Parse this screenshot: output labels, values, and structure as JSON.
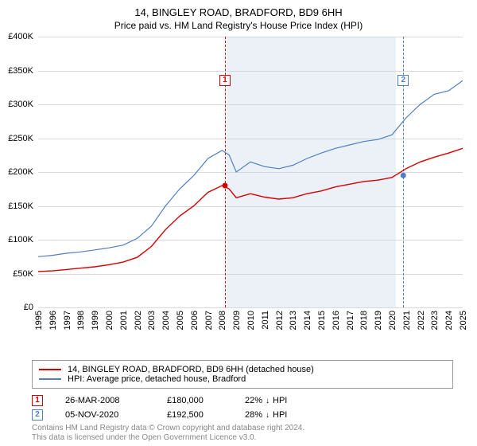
{
  "title": "14, BINGLEY ROAD, BRADFORD, BD9 6HH",
  "subtitle": "Price paid vs. HM Land Registry's House Price Index (HPI)",
  "chart": {
    "type": "line",
    "ylim": [
      0,
      400000
    ],
    "ytick_step": 50000,
    "y_labels": [
      "£0",
      "£50K",
      "£100K",
      "£150K",
      "£200K",
      "£250K",
      "£300K",
      "£350K",
      "£400K"
    ],
    "xlim": [
      1995,
      2025
    ],
    "x_labels": [
      "1995",
      "1996",
      "1997",
      "1998",
      "1999",
      "2000",
      "2001",
      "2002",
      "2003",
      "2004",
      "2005",
      "2006",
      "2007",
      "2008",
      "2009",
      "2010",
      "2011",
      "2012",
      "2013",
      "2014",
      "2015",
      "2016",
      "2017",
      "2018",
      "2019",
      "2020",
      "2021",
      "2022",
      "2023",
      "2024",
      "2025"
    ],
    "background_color": "#ffffff",
    "grid_color": "#d9d9d9",
    "shade_color": "rgba(200,215,235,0.35)",
    "shade_x": [
      2008.3,
      2020.3
    ],
    "series": [
      {
        "name": "14, BINGLEY ROAD, BRADFORD, BD9 6HH (detached house)",
        "color": "#d40000",
        "line_width": 1.4,
        "data": [
          [
            1995,
            53000
          ],
          [
            1996,
            54000
          ],
          [
            1997,
            56000
          ],
          [
            1998,
            58000
          ],
          [
            1999,
            60000
          ],
          [
            2000,
            63000
          ],
          [
            2001,
            67000
          ],
          [
            2002,
            74000
          ],
          [
            2003,
            90000
          ],
          [
            2004,
            115000
          ],
          [
            2005,
            135000
          ],
          [
            2006,
            150000
          ],
          [
            2007,
            170000
          ],
          [
            2008,
            180000
          ],
          [
            2008.5,
            175000
          ],
          [
            2009,
            162000
          ],
          [
            2010,
            168000
          ],
          [
            2011,
            163000
          ],
          [
            2012,
            160000
          ],
          [
            2013,
            162000
          ],
          [
            2014,
            168000
          ],
          [
            2015,
            172000
          ],
          [
            2016,
            178000
          ],
          [
            2017,
            182000
          ],
          [
            2018,
            186000
          ],
          [
            2019,
            188000
          ],
          [
            2020,
            192000
          ],
          [
            2021,
            205000
          ],
          [
            2022,
            215000
          ],
          [
            2023,
            222000
          ],
          [
            2024,
            228000
          ],
          [
            2025,
            235000
          ]
        ]
      },
      {
        "name": "HPI: Average price, detached house, Bradford",
        "color": "#4f7ec2",
        "line_width": 1.2,
        "data": [
          [
            1995,
            75000
          ],
          [
            1996,
            77000
          ],
          [
            1997,
            80000
          ],
          [
            1998,
            82000
          ],
          [
            1999,
            85000
          ],
          [
            2000,
            88000
          ],
          [
            2001,
            92000
          ],
          [
            2002,
            102000
          ],
          [
            2003,
            120000
          ],
          [
            2004,
            150000
          ],
          [
            2005,
            175000
          ],
          [
            2006,
            195000
          ],
          [
            2007,
            220000
          ],
          [
            2008,
            232000
          ],
          [
            2008.5,
            225000
          ],
          [
            2009,
            200000
          ],
          [
            2010,
            215000
          ],
          [
            2011,
            208000
          ],
          [
            2012,
            205000
          ],
          [
            2013,
            210000
          ],
          [
            2014,
            220000
          ],
          [
            2015,
            228000
          ],
          [
            2016,
            235000
          ],
          [
            2017,
            240000
          ],
          [
            2018,
            245000
          ],
          [
            2019,
            248000
          ],
          [
            2020,
            255000
          ],
          [
            2021,
            280000
          ],
          [
            2022,
            300000
          ],
          [
            2023,
            315000
          ],
          [
            2024,
            320000
          ],
          [
            2025,
            335000
          ]
        ]
      }
    ],
    "markers": [
      {
        "n": "1",
        "x": 2008.2,
        "color": "#d40000",
        "point_y": 180000
      },
      {
        "n": "2",
        "x": 2020.8,
        "color": "#4f7ec2",
        "point_y": 195000
      }
    ]
  },
  "legend": {
    "items": [
      {
        "color": "#d40000",
        "label": "14, BINGLEY ROAD, BRADFORD, BD9 6HH (detached house)"
      },
      {
        "color": "#4f7ec2",
        "label": "HPI: Average price, detached house, Bradford"
      }
    ]
  },
  "sales": [
    {
      "n": "1",
      "color": "#d40000",
      "date": "26-MAR-2008",
      "price": "£180,000",
      "pct": "22%",
      "arrow": "↓",
      "suffix": "HPI"
    },
    {
      "n": "2",
      "color": "#4f7ec2",
      "date": "05-NOV-2020",
      "price": "£192,500",
      "pct": "28%",
      "arrow": "↓",
      "suffix": "HPI"
    }
  ],
  "footer1": "Contains HM Land Registry data © Crown copyright and database right 2024.",
  "footer2": "This data is licensed under the Open Government Licence v3.0."
}
